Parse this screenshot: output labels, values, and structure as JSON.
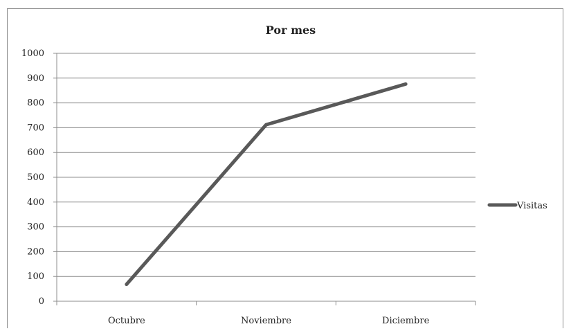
{
  "chart_data": {
    "type": "line",
    "title": "Por mes",
    "categories": [
      "Octubre",
      "Noviembre",
      "Diciembre"
    ],
    "series": [
      {
        "name": "Visitas",
        "values": [
          68,
          712,
          876
        ]
      }
    ],
    "ylim": [
      0,
      1000
    ],
    "yticks": [
      0,
      100,
      200,
      300,
      400,
      500,
      600,
      700,
      800,
      900,
      1000
    ],
    "ytick_labels": [
      "0",
      "100",
      "200",
      "300",
      "400",
      "500",
      "600",
      "700",
      "800",
      "900",
      "1000"
    ],
    "grid": true,
    "legend_position": "right",
    "line_color": "#595959"
  }
}
